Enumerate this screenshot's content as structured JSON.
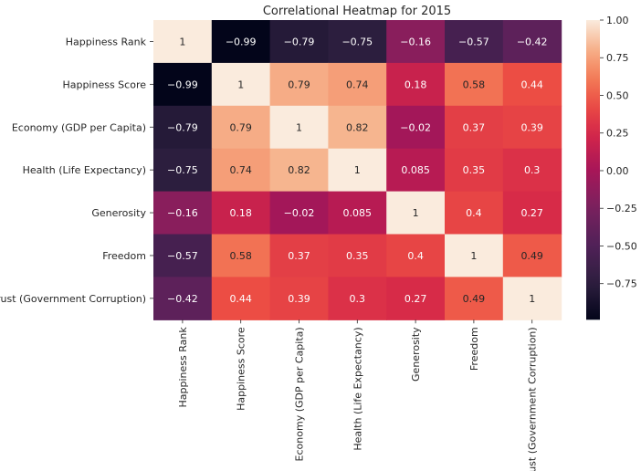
{
  "chart_data": {
    "type": "heatmap",
    "title": "Correlational Heatmap for 2015",
    "row_labels": [
      "Happiness Rank",
      "Happiness Score",
      "Economy (GDP per Capita)",
      "Health (Life Expectancy)",
      "Generosity",
      "Freedom",
      "Trust (Government Corruption)"
    ],
    "col_labels": [
      "Happiness Rank",
      "Happiness Score",
      "Economy (GDP per Capita)",
      "Health (Life Expectancy)",
      "Generosity",
      "Freedom",
      "Trust (Government Corruption)"
    ],
    "values": [
      [
        1,
        -0.99,
        -0.79,
        -0.75,
        -0.16,
        -0.57,
        -0.42
      ],
      [
        -0.99,
        1,
        0.79,
        0.74,
        0.18,
        0.58,
        0.44
      ],
      [
        -0.79,
        0.79,
        1,
        0.82,
        -0.02,
        0.37,
        0.39
      ],
      [
        -0.75,
        0.74,
        0.82,
        1,
        0.085,
        0.35,
        0.3
      ],
      [
        -0.16,
        0.18,
        -0.02,
        0.085,
        1,
        0.4,
        0.27
      ],
      [
        -0.57,
        0.58,
        0.37,
        0.35,
        0.4,
        1,
        0.49
      ],
      [
        -0.42,
        0.44,
        0.39,
        0.3,
        0.27,
        0.49,
        1
      ]
    ],
    "colorbar": {
      "range": [
        -0.99,
        1.0
      ],
      "ticks": [
        1.0,
        0.75,
        0.5,
        0.25,
        0.0,
        -0.25,
        -0.5,
        -0.75
      ],
      "tick_labels": [
        "1.00",
        "0.75",
        "0.50",
        "0.25",
        "0.00",
        "−0.25",
        "−0.50",
        "−0.75"
      ],
      "colormap": "rocket"
    }
  }
}
